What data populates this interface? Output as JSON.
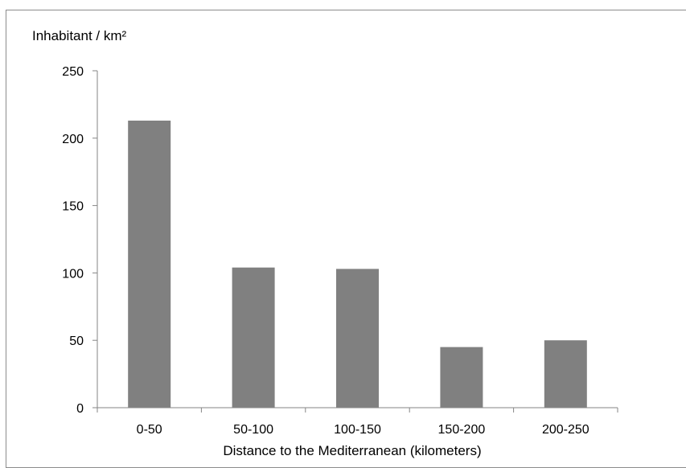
{
  "chart_data": {
    "type": "bar",
    "title": "",
    "xlabel": "Distance to the Mediterranean (kilometers)",
    "ylabel": "Inhabitant / km²",
    "categories": [
      "0-50",
      "50-100",
      "100-150",
      "150-200",
      "200-250"
    ],
    "values": [
      213,
      104,
      103,
      45,
      50
    ],
    "ylim": [
      0,
      250
    ],
    "yticks": [
      0,
      50,
      100,
      150,
      200,
      250
    ],
    "grid": false,
    "legend": "none",
    "bar_color": "#808080",
    "axis_color": "#868686"
  }
}
